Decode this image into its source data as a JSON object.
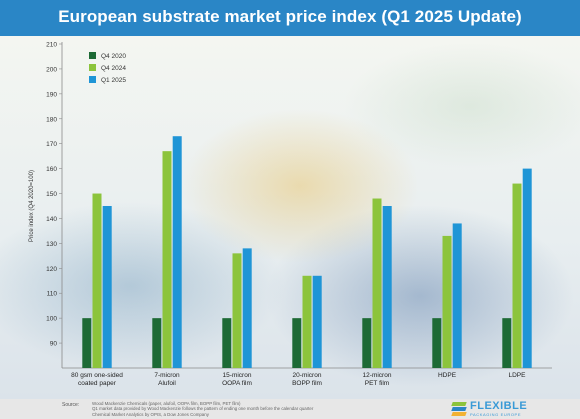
{
  "header": {
    "title": "European substrate market price index (Q1 2025 Update)"
  },
  "colors": {
    "header_bg": "#2a86c6",
    "series": [
      "#1d6a35",
      "#8cc43c",
      "#1f95d6"
    ],
    "brand": "#3a9ad6"
  },
  "chart_data": {
    "type": "bar",
    "title": "",
    "ylabel": "Price index (Q4 2020=100)",
    "xlabel": "",
    "ylim": [
      80,
      210
    ],
    "yticks": [
      90,
      100,
      110,
      120,
      130,
      140,
      150,
      160,
      170,
      180,
      190,
      200,
      210
    ],
    "grid": false,
    "legend_position": "top-left",
    "categories": [
      [
        "80 gsm one-sided",
        "coated paper"
      ],
      [
        "7-micron",
        "Alufoil"
      ],
      [
        "15-micron",
        "OOPA film"
      ],
      [
        "20-micron",
        "BOPP film"
      ],
      [
        "12-micron",
        "PET film"
      ],
      [
        "HDPE"
      ],
      [
        "LDPE"
      ]
    ],
    "series": [
      {
        "name": "Q4 2020",
        "color": "#1d6a35",
        "values": [
          100,
          100,
          100,
          100,
          100,
          100,
          100
        ]
      },
      {
        "name": "Q4 2024",
        "color": "#8cc43c",
        "values": [
          150,
          167,
          126,
          117,
          148,
          133,
          154
        ]
      },
      {
        "name": "Q1 2025",
        "color": "#1f95d6",
        "values": [
          145,
          173,
          128,
          117,
          145,
          138,
          160
        ]
      }
    ]
  },
  "footer": {
    "source_label": "Source:",
    "source_lines": [
      "Wood Mackenzie Chemicals (paper, alufoil, OOPA film, BOPP film, PET film)",
      "Q1 market data provided by Wood Mackenzie follows the pattern of ending one month before the calendar quarter",
      "Chemical Market Analytics by OPIS, a Dow Jones Company"
    ],
    "brand": "FLEXIBLE",
    "brand_tag": "PACKAGING EUROPE",
    "logo_colors": [
      "#8cc43c",
      "#2a86c6",
      "#f2b233"
    ]
  }
}
